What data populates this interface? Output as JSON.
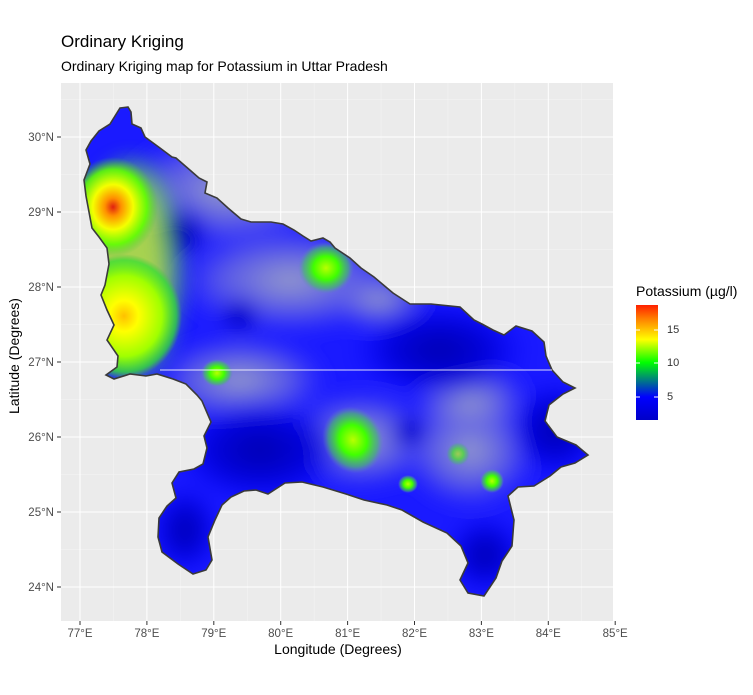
{
  "title": "Ordinary Kriging",
  "subtitle": "Ordinary Kriging map for Potassium in Uttar Pradesh",
  "x_axis": {
    "title": "Longitude (Degrees)",
    "ticks": [
      "77°E",
      "78°E",
      "79°E",
      "80°E",
      "81°E",
      "82°E",
      "83°E",
      "84°E",
      "85°E"
    ]
  },
  "y_axis": {
    "title": "Latitude (Degrees)",
    "ticks": [
      "24°N",
      "25°N",
      "26°N",
      "27°N",
      "28°N",
      "29°N",
      "30°N"
    ]
  },
  "legend": {
    "title": "Potassium (µg/l)",
    "ticks": [
      "5",
      "10",
      "15"
    ],
    "colors": [
      "#0000c8",
      "#0000ff",
      "#00ff00",
      "#ffff00",
      "#ff8000",
      "#ff2000"
    ]
  },
  "chart_data": {
    "type": "heatmap",
    "title": "Ordinary Kriging",
    "subtitle": "Ordinary Kriging map for Potassium in Uttar Pradesh",
    "xlabel": "Longitude (Degrees)",
    "ylabel": "Latitude (Degrees)",
    "xlim": [
      76.8,
      85.0
    ],
    "ylim": [
      23.6,
      30.75
    ],
    "color_scale": {
      "name": "Potassium (µg/l)",
      "range": [
        2,
        18
      ],
      "ticks": [
        5,
        10,
        15
      ]
    },
    "hotspots": [
      {
        "lon": 77.5,
        "lat": 29.1,
        "value": 18
      },
      {
        "lon": 77.65,
        "lat": 27.6,
        "value": 13
      },
      {
        "lon": 80.7,
        "lat": 28.3,
        "value": 10
      },
      {
        "lon": 81.0,
        "lat": 26.1,
        "value": 10
      },
      {
        "lon": 79.05,
        "lat": 26.85,
        "value": 9
      },
      {
        "lon": 83.2,
        "lat": 25.45,
        "value": 9
      },
      {
        "lon": 81.95,
        "lat": 25.4,
        "value": 8
      },
      {
        "lon": 82.7,
        "lat": 25.75,
        "value": 8
      }
    ],
    "grid": true,
    "legend_position": "right"
  }
}
